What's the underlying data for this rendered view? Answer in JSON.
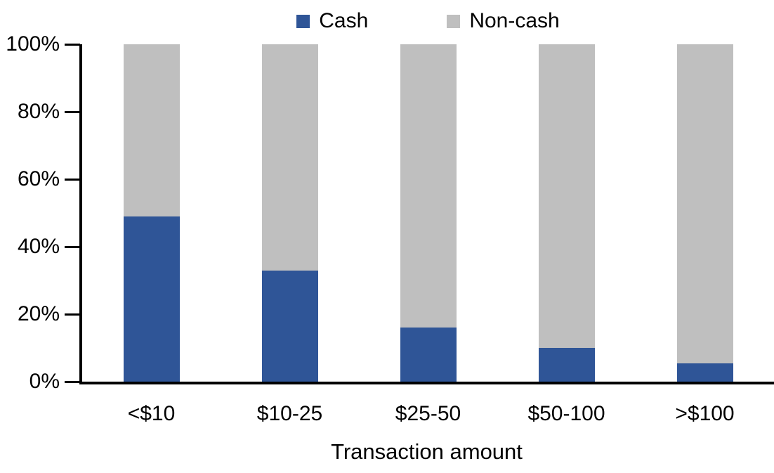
{
  "chart_data": {
    "type": "bar",
    "variant": "stacked-100-percent",
    "categories": [
      "<$10",
      "$10-25",
      "$25-50",
      "$50-100",
      ">$100"
    ],
    "series": [
      {
        "name": "Cash",
        "color": "#2F5597",
        "values": [
          49,
          33,
          16,
          10,
          5.5
        ]
      },
      {
        "name": "Non-cash",
        "color": "#BFBFBF",
        "values": [
          51,
          67,
          84,
          90,
          94.5
        ]
      }
    ],
    "xlabel": "Transaction amount",
    "ylim": [
      0,
      100
    ],
    "yticks": [
      "0%",
      "20%",
      "40%",
      "60%",
      "80%",
      "100%"
    ],
    "legend_position": "top",
    "grid": false,
    "colors": {
      "axis": "#000000",
      "text": "#000000",
      "background": "#FFFFFF"
    }
  }
}
